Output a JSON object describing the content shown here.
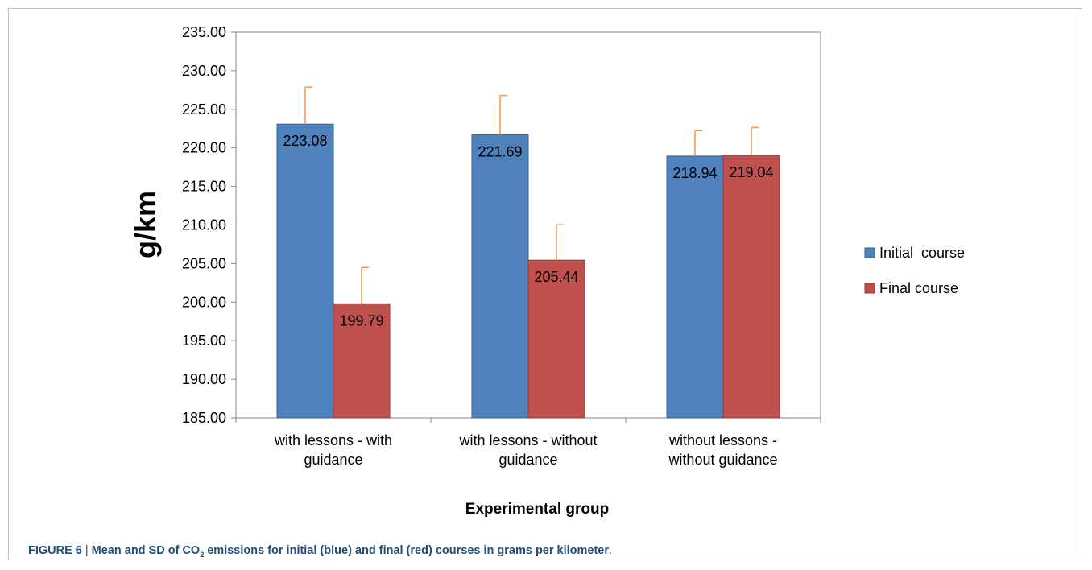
{
  "chart_data": {
    "type": "bar",
    "categories": [
      [
        "with lessons - with",
        "guidance"
      ],
      [
        "with lessons - without",
        "guidance"
      ],
      [
        "without lessons -",
        "without guidance"
      ]
    ],
    "series": [
      {
        "name": "Initial  course",
        "color": "#4f81bd",
        "values": [
          223.08,
          221.69,
          218.94
        ],
        "error_sd": [
          4.8,
          5.1,
          3.3
        ]
      },
      {
        "name": "Final course",
        "color": "#c0504d",
        "values": [
          199.79,
          205.44,
          219.04
        ],
        "error_sd": [
          4.7,
          4.6,
          3.6
        ]
      }
    ],
    "data_labels": [
      "223.08",
      "221.69",
      "218.94",
      "199.79",
      "205.44",
      "219.04"
    ],
    "ylabel": "g/km",
    "xlabel": "Experimental group",
    "ylim": [
      185,
      235
    ],
    "yticks": [
      "185.00",
      "190.00",
      "195.00",
      "200.00",
      "205.00",
      "210.00",
      "215.00",
      "220.00",
      "225.00",
      "230.00",
      "235.00"
    ],
    "grid": false,
    "legend_position": "right",
    "error_bar_color": "#f79646"
  },
  "caption": {
    "label": "FIGURE 6",
    "separator": "|",
    "text_before": "Mean and SD of CO",
    "subscript": "2",
    "text_after": " emissions for initial (blue) and final (red) courses in grams per kilometer",
    "tail": "."
  }
}
